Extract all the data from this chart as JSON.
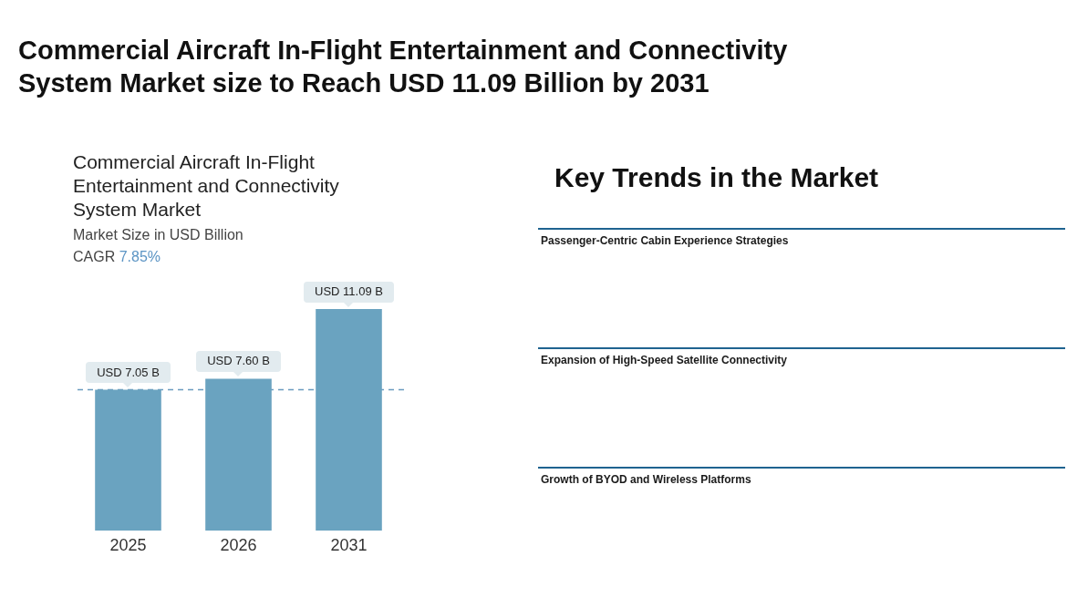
{
  "chart_data": [
    {
      "type": "bar",
      "title": "Commercial Aircraft In-Flight Entertainment and Connectivity System Market size to Reach USD 11.09 Billion by 2031",
      "subtitle": "Commercial Aircraft In-Flight Entertainment and Connectivity System Market",
      "ylabel": "Market Size in USD Billion",
      "annotations": [
        "CAGR 7.85%"
      ],
      "categories": [
        "2025",
        "2026",
        "2031"
      ],
      "values": [
        7.05,
        7.6,
        11.09
      ],
      "color": "#6aa3c0",
      "value_labels": [
        "USD 7.05 B",
        "USD 7.60 B",
        "USD 11.09 B"
      ],
      "ref_lines": [
        {
          "axis": "y",
          "value": 7.05,
          "color": "#6a9bc0",
          "line_style": "dashed"
        }
      ]
    },
    {
      "type": "other",
      "title": "Key Trends in the Market",
      "annotations": [
        "Passenger-Centric Cabin Experience Strategies",
        "Expansion of High-Speed Satellite Connectivity",
        "Growth of BYOD and Wireless Platforms"
      ]
    }
  ]
}
